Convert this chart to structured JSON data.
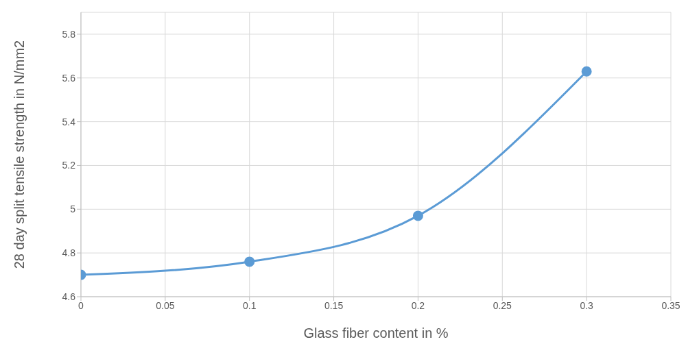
{
  "chart_data": {
    "type": "line",
    "xlabel": "Glass fiber content in %",
    "ylabel": "28 day split tensile strength in N/mm2",
    "x": [
      0,
      0.1,
      0.2,
      0.3
    ],
    "series": [
      {
        "color": "#5b9bd5",
        "values": [
          4.7,
          4.76,
          4.97,
          5.63
        ]
      }
    ],
    "xlim": [
      0,
      0.35
    ],
    "xticks": [
      0,
      0.05,
      0.1,
      0.15,
      0.2,
      0.25,
      0.3,
      0.35
    ],
    "ylim": [
      4.6,
      5.9
    ],
    "yticks": [
      4.6,
      4.8,
      5,
      5.2,
      5.4,
      5.6,
      5.8
    ],
    "grid": true,
    "marker": "circle",
    "line_style": "solid",
    "legend": false
  }
}
